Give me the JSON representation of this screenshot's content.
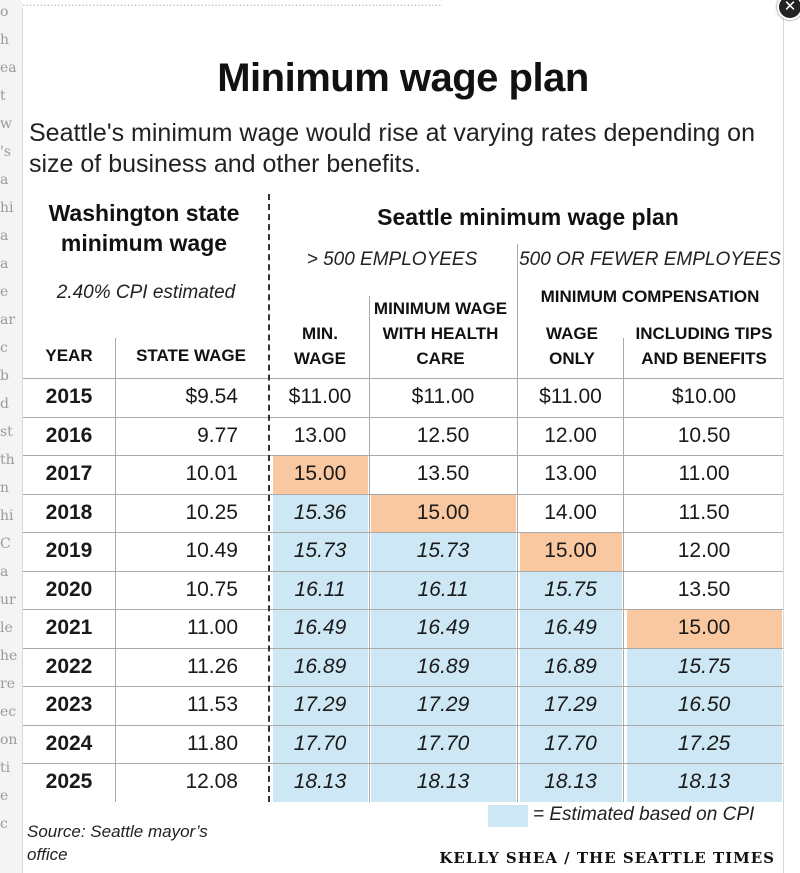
{
  "background_fragments": [
    "o",
    "h",
    "ea",
    "t",
    "w",
    "'s",
    "a",
    "hi",
    "a",
    "a",
    "e",
    "ar",
    "c",
    "b",
    "d",
    "st",
    "th",
    "n",
    "hi",
    "C",
    "a",
    "ur",
    "le",
    "he",
    "re",
    "ec",
    "on",
    "ti",
    "e",
    "c"
  ],
  "title": "Minimum wage plan",
  "subtitle": "Seattle's minimum wage would rise at varying rates depending on size of business and other benefits.",
  "headers": {
    "wa_title": "Washington state minimum wage",
    "wa_note": "2.40% CPI estimated",
    "seattle_title": "Seattle minimum wage plan",
    "group_large": "> 500 EMPLOYEES",
    "group_small": "500 OR FEWER EMPLOYEES",
    "min_comp": "MINIMUM COMPENSATION",
    "columns": [
      "YEAR",
      "STATE WAGE",
      "MIN. WAGE",
      "MINIMUM WAGE WITH HEALTH CARE",
      "WAGE ONLY",
      "INCLUDING TIPS AND BENEFITS"
    ]
  },
  "chart_data": {
    "type": "table",
    "title": "Minimum wage plan",
    "subtitle": "Seattle's minimum wage would rise at varying rates depending on size of business and other benefits.",
    "columns": [
      "YEAR",
      "STATE WAGE",
      "MIN. WAGE",
      "MINIMUM WAGE WITH HEALTH CARE",
      "WAGE ONLY",
      "INCLUDING TIPS AND BENEFITS"
    ],
    "rows": [
      [
        "2015",
        "$9.54",
        "$11.00",
        "$11.00",
        "$11.00",
        "$10.00"
      ],
      [
        "2016",
        "9.77",
        "13.00",
        "12.50",
        "12.00",
        "10.50"
      ],
      [
        "2017",
        "10.01",
        "15.00",
        "13.50",
        "13.00",
        "11.00"
      ],
      [
        "2018",
        "10.25",
        "15.36",
        "15.00",
        "14.00",
        "11.50"
      ],
      [
        "2019",
        "10.49",
        "15.73",
        "15.73",
        "15.00",
        "12.00"
      ],
      [
        "2020",
        "10.75",
        "16.11",
        "16.11",
        "15.75",
        "13.50"
      ],
      [
        "2021",
        "11.00",
        "16.49",
        "16.49",
        "16.49",
        "15.00"
      ],
      [
        "2022",
        "11.26",
        "16.89",
        "16.89",
        "16.89",
        "15.75"
      ],
      [
        "2023",
        "11.53",
        "17.29",
        "17.29",
        "17.29",
        "16.50"
      ],
      [
        "2024",
        "11.80",
        "17.70",
        "17.70",
        "17.70",
        "17.25"
      ],
      [
        "2025",
        "12.08",
        "18.13",
        "18.13",
        "18.13",
        "18.13"
      ]
    ],
    "first_15_row_index": [
      2,
      3,
      4,
      6
    ],
    "estimated_from_row_index": [
      3,
      4,
      5,
      7
    ],
    "colors": {
      "first_15": "#fac8a0",
      "estimated": "#cde7f5"
    }
  },
  "legend": {
    "label": "= Estimated based on CPI"
  },
  "source": "Source: Seattle mayor’s office",
  "credit": "KELLY SHEA / THE SEATTLE TIMES"
}
